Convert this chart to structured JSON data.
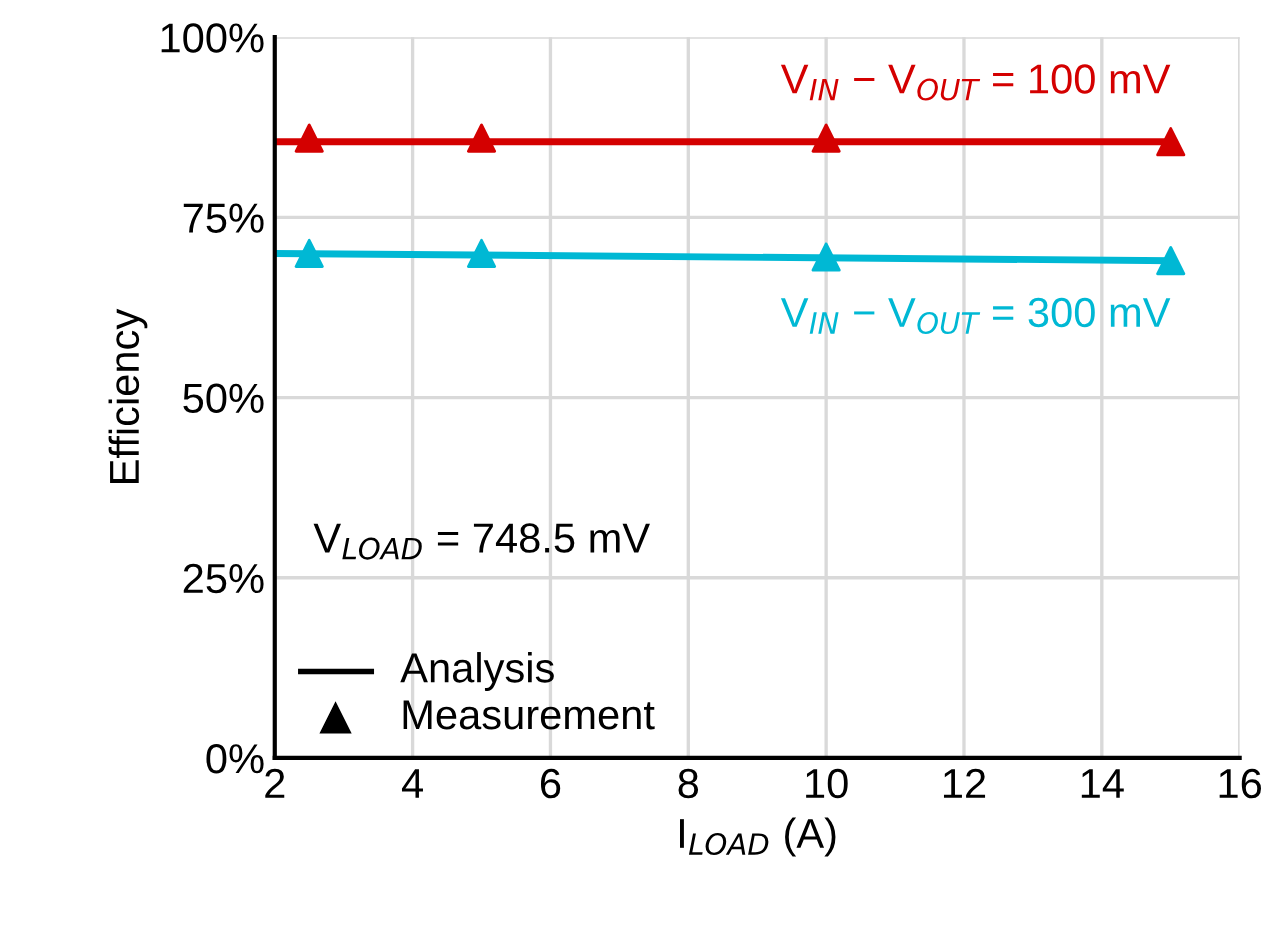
{
  "chart_data": {
    "type": "line",
    "xlabel": "I$_{LOAD}$ (A)",
    "ylabel": "Efficiency",
    "xlim": [
      2,
      16
    ],
    "xticks": [
      2,
      4,
      6,
      8,
      10,
      12,
      14,
      16
    ],
    "ylim": [
      0,
      100
    ],
    "yticks": [
      {
        "value": 0,
        "label": "0%"
      },
      {
        "value": 25,
        "label": "25%"
      },
      {
        "value": 50,
        "label": "50%"
      },
      {
        "value": 75,
        "label": "75%"
      },
      {
        "value": 100,
        "label": "100%"
      }
    ],
    "grid": true,
    "series": [
      {
        "color": "#d40000",
        "x": [
          2,
          15
        ],
        "values": [
          85.5,
          85.5
        ],
        "marker": "none"
      },
      {
        "type": "scatter",
        "color": "#d40000",
        "x": [
          2.5,
          5,
          10,
          15
        ],
        "values": [
          86,
          86,
          86,
          85.5
        ],
        "marker": "triangle"
      },
      {
        "color": "#00b8d4",
        "x": [
          2,
          15
        ],
        "values": [
          70,
          69
        ],
        "marker": "none"
      },
      {
        "type": "scatter",
        "color": "#00b8d4",
        "x": [
          2.5,
          5,
          10,
          15
        ],
        "values": [
          70,
          70,
          69.5,
          69
        ],
        "marker": "triangle"
      }
    ],
    "annotations": [
      {
        "text": "V$_{IN}$ − V$_{OUT}$ = 100 mV",
        "x": 15,
        "y": 85.5
      },
      {
        "text": "V$_{IN}$ − V$_{OUT}$ = 300 mV",
        "x": 15,
        "y": 69
      },
      "V$_{LOAD}$ = 748.5 mV",
      "Analysis",
      "Measurement"
    ]
  }
}
